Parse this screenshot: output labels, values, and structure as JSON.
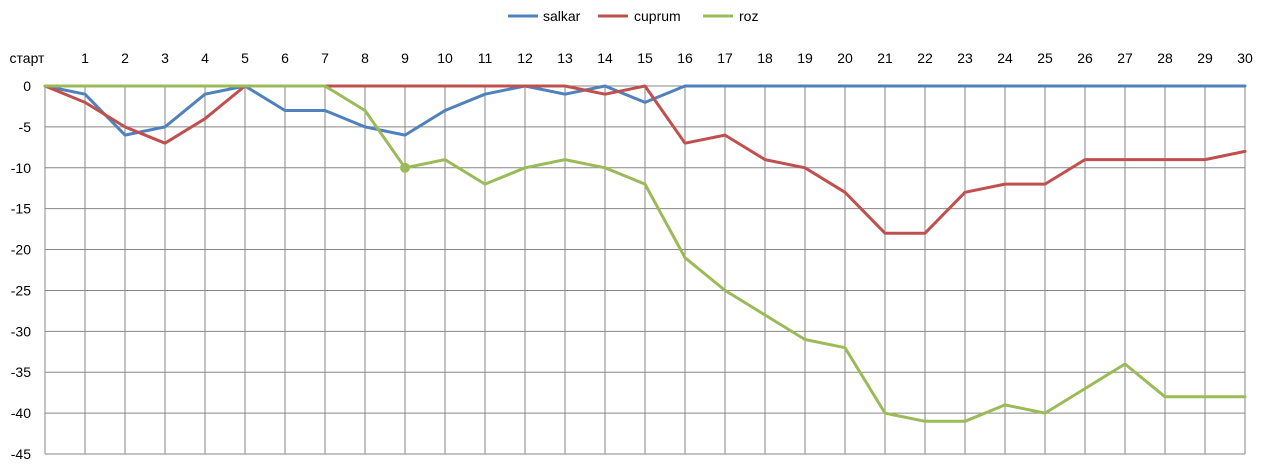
{
  "chart_data": {
    "type": "line",
    "title": "",
    "xlabel": "",
    "ylabel": "",
    "categories": [
      "старт",
      "1",
      "2",
      "3",
      "4",
      "5",
      "6",
      "7",
      "8",
      "9",
      "10",
      "11",
      "12",
      "13",
      "14",
      "15",
      "16",
      "17",
      "18",
      "19",
      "20",
      "21",
      "22",
      "23",
      "24",
      "25",
      "26",
      "27",
      "28",
      "29",
      "30"
    ],
    "y_ticks": [
      "0",
      "-5",
      "-10",
      "-15",
      "-20",
      "-25",
      "-30",
      "-35",
      "-40",
      "-45"
    ],
    "ylim": [
      -45,
      0
    ],
    "grid": true,
    "legend_position": "top",
    "x_axis_position": "top",
    "series": [
      {
        "name": "salkar",
        "color": "#4f81bd",
        "values": [
          0,
          -1,
          -6,
          -5,
          -1,
          0,
          -3,
          -3,
          -5,
          -6,
          -3,
          -1,
          0,
          -1,
          0,
          -2,
          0,
          0,
          0,
          0,
          0,
          0,
          0,
          0,
          0,
          0,
          0,
          0,
          0,
          0,
          0
        ]
      },
      {
        "name": "cuprum",
        "color": "#c0504d",
        "values": [
          0,
          -2,
          -5,
          -7,
          -4,
          0,
          0,
          0,
          0,
          0,
          0,
          0,
          0,
          0,
          -1,
          0,
          -7,
          -6,
          -9,
          -10,
          -13,
          -18,
          -18,
          -13,
          -12,
          -12,
          -9,
          -9,
          -9,
          -9,
          -8
        ]
      },
      {
        "name": "roz",
        "color": "#9bbb59",
        "values": [
          0,
          0,
          0,
          0,
          0,
          0,
          0,
          0,
          -3,
          -10,
          -9,
          -12,
          -10,
          -9,
          -10,
          -12,
          -21,
          -25,
          -28,
          -31,
          -32,
          -40,
          -41,
          -41,
          -39,
          -40,
          -37,
          -34,
          -38,
          -38,
          -38
        ],
        "marker_index": 9
      }
    ]
  }
}
